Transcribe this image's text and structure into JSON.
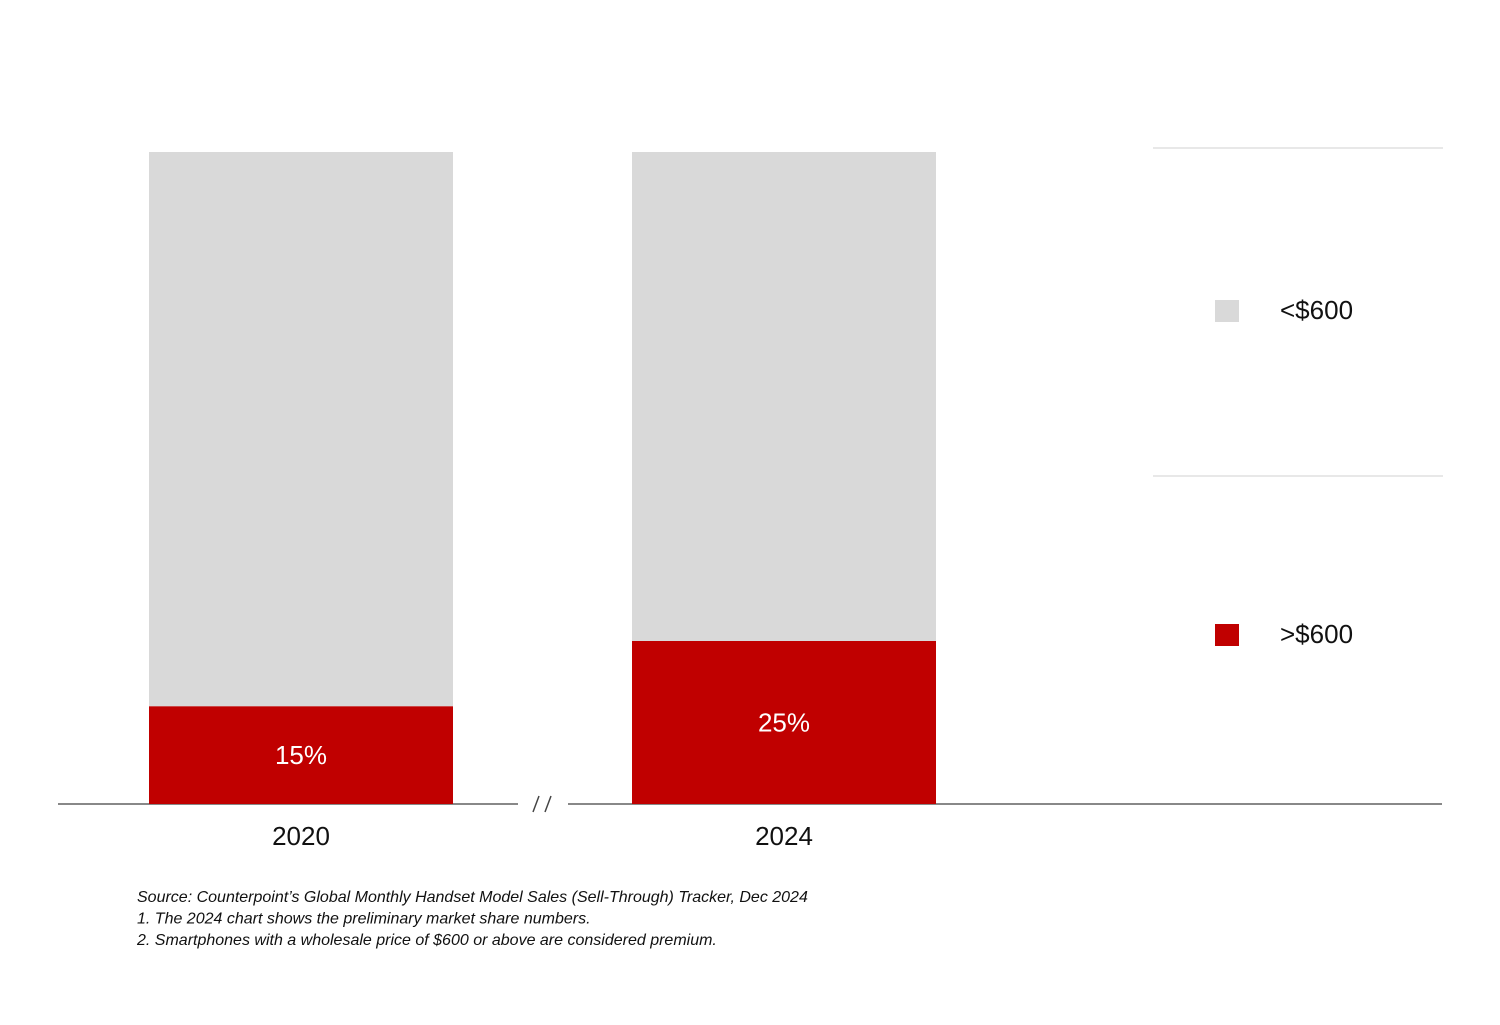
{
  "chart_data": {
    "type": "stacked_bar",
    "categories": [
      "2020",
      "2024"
    ],
    "series": [
      {
        "name": ">$600",
        "color": "#c00000",
        "values": [
          15,
          25
        ],
        "value_labels": [
          "15%",
          "25%"
        ]
      },
      {
        "name": "<$600",
        "color": "#d9d9d9",
        "values": [
          85,
          75
        ]
      }
    ],
    "notes": [
      "Source: Counterpoint’s Global Monthly Handset Model Sales (Sell-Through) Tracker, Dec 2024",
      "1. The 2024 chart shows the preliminary market share numbers.",
      "2. Smartphones with a wholesale price of $600 or above are considered premium."
    ]
  }
}
